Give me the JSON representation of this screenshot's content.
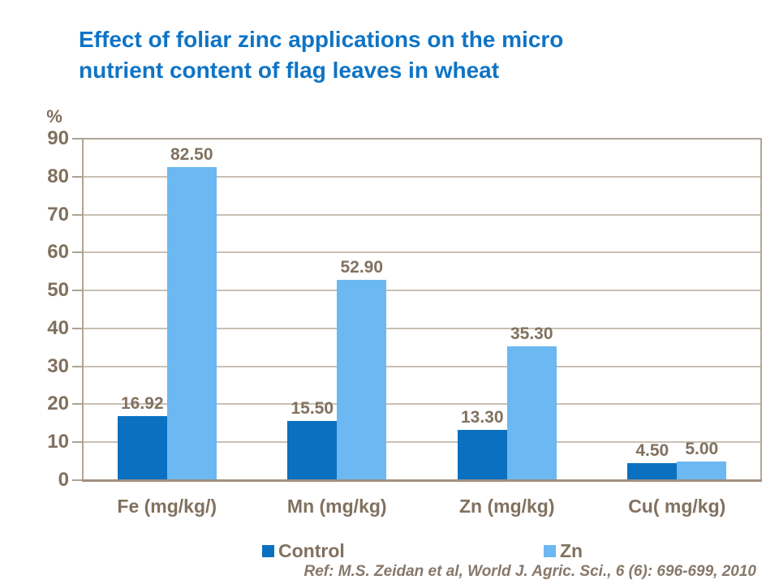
{
  "title_line1": "Effect of foliar zinc applications on the micro",
  "title_line2": "nutrient content of flag leaves in wheat",
  "reference": "Ref: M.S. Zeidan et al, World J. Agric. Sci., 6 (6): 696-699, 2010",
  "colors": {
    "title_blue": "#0F74C5",
    "axis_text_brown": "#80705E",
    "label_text_brown": "#81715F",
    "gridline": "#C9C0B3",
    "plot_border": "#B1A697",
    "control_series": "#0B70C0",
    "zn_series": "#6CB8F2",
    "background": "#FFFFFF"
  },
  "chart_data": {
    "type": "bar",
    "title": "Effect of foliar zinc applications on the micro nutrient content of flag leaves in wheat",
    "categories": [
      "Fe (mg/kg/)",
      "Mn (mg/kg)",
      "Zn (mg/kg)",
      "Cu( mg/kg)"
    ],
    "series": [
      {
        "name": "Control",
        "color": "#0B70C0",
        "values": [
          16.92,
          15.5,
          13.3,
          4.5
        ]
      },
      {
        "name": "Zn",
        "color": "#6CB8F2",
        "values": [
          82.5,
          52.9,
          35.3,
          5.0
        ]
      }
    ],
    "value_label_format": "2-decimal",
    "xlabel": "",
    "ylabel": "%",
    "ylim": [
      0,
      90
    ],
    "ytick_step": 10,
    "yticks": [
      0,
      10,
      20,
      30,
      40,
      50,
      60,
      70,
      80,
      90
    ],
    "grid": true,
    "legend_position": "bottom",
    "legend_entries": [
      "Control",
      "Zn"
    ]
  }
}
